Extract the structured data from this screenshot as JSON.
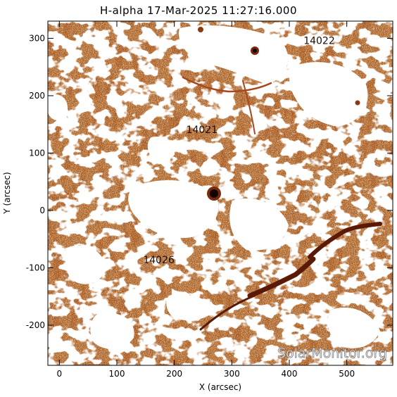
{
  "title": "H-alpha 17-Mar-2025 11:27:16.000",
  "axes": {
    "x_label": "X (arcsec)",
    "y_label": "Y (arcsec)",
    "x_ticks": [
      "0",
      "100",
      "200",
      "300",
      "400",
      "500"
    ],
    "y_ticks": [
      "300",
      "200",
      "100",
      "0",
      "-100",
      "-200"
    ]
  },
  "regions": [
    {
      "label": "14022",
      "x": 452,
      "y": 290
    },
    {
      "label": "14021",
      "x": 248,
      "y": 135
    },
    {
      "label": "14026",
      "x": 173,
      "y": -92
    }
  ],
  "watermark": "SolarMonitor.org",
  "colors": {
    "background": "#ffffff",
    "image_base": "#e08a45",
    "image_dark": "#5a1a06",
    "white_patches": "#ffffff"
  }
}
